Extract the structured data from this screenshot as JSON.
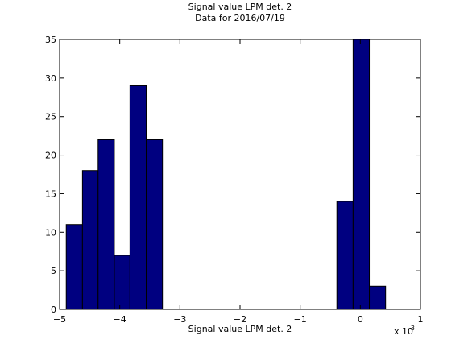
{
  "chart_data": {
    "type": "bar",
    "title": "Signal value LPM det. 2",
    "subtitle": "Data for 2016/07/19",
    "xlabel": "Signal value LPM det. 2",
    "ylabel": "",
    "x_exponent_label_base": "x 10",
    "x_exponent_label_power": "-3",
    "xlim": [
      -5,
      1
    ],
    "ylim": [
      0,
      35
    ],
    "xticks": [
      "−5",
      "−4",
      "−3",
      "−2",
      "−1",
      "0",
      "1"
    ],
    "yticks": [
      "0",
      "5",
      "10",
      "15",
      "20",
      "25",
      "30",
      "35"
    ],
    "bar_color": "#000080",
    "bar_edge_color": "#000000",
    "grid": false,
    "bins": [
      {
        "x0": -4.89,
        "x1": -4.62,
        "value": 11
      },
      {
        "x0": -4.62,
        "x1": -4.36,
        "value": 18
      },
      {
        "x0": -4.36,
        "x1": -4.09,
        "value": 22
      },
      {
        "x0": -4.09,
        "x1": -3.83,
        "value": 7
      },
      {
        "x0": -3.83,
        "x1": -3.56,
        "value": 29
      },
      {
        "x0": -3.56,
        "x1": -3.29,
        "value": 22
      },
      {
        "x0": -0.39,
        "x1": -0.12,
        "value": 14
      },
      {
        "x0": -0.12,
        "x1": 0.15,
        "value": 35
      },
      {
        "x0": 0.15,
        "x1": 0.42,
        "value": 3
      }
    ]
  }
}
